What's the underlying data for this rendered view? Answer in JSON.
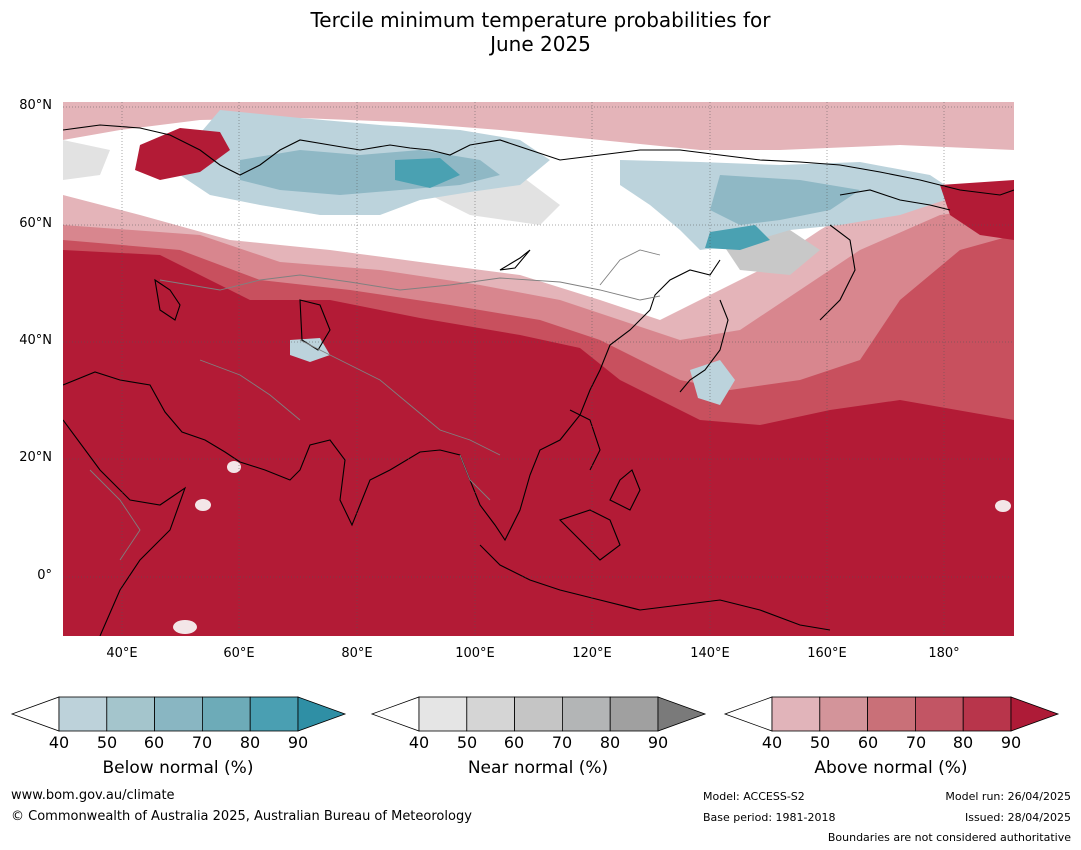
{
  "title_line1": "Tercile minimum temperature probabilities for",
  "title_line2": "June 2025",
  "map": {
    "lat_labels": [
      "80°N",
      "60°N",
      "40°N",
      "20°N",
      "0°"
    ],
    "lon_labels": [
      "40°E",
      "60°E",
      "80°E",
      "100°E",
      "120°E",
      "140°E",
      "160°E",
      "180°"
    ],
    "colors": {
      "above_extreme": "#b31b36",
      "above_high": "#c8505e",
      "above_mid": "#d8868e",
      "above_low": "#e4b4b9",
      "near": "#e2e2e2",
      "near_dark": "#c8c8c8",
      "below_low": "#bcd3dc",
      "below_mid": "#8fb8c5",
      "below_high": "#4aa1b2",
      "coast": "#000000",
      "border": "#808080"
    }
  },
  "colorbars": [
    {
      "name": "below",
      "title": "Below normal (%)",
      "ticks": [
        "40",
        "50",
        "60",
        "70",
        "80",
        "90"
      ],
      "colors": [
        "#ffffff",
        "#bdd2da",
        "#a4c5cc",
        "#89b6c2",
        "#6dabb8",
        "#4a9fb2",
        "#2f8fa5"
      ]
    },
    {
      "name": "near",
      "title": "Near normal (%)",
      "ticks": [
        "40",
        "50",
        "60",
        "70",
        "80",
        "90"
      ],
      "colors": [
        "#ffffff",
        "#e5e5e5",
        "#d5d5d5",
        "#c5c5c5",
        "#b3b5b6",
        "#a0a0a0",
        "#7a7a7a"
      ]
    },
    {
      "name": "above",
      "title": "Above normal (%)",
      "ticks": [
        "40",
        "50",
        "60",
        "70",
        "80",
        "90"
      ],
      "colors": [
        "#ffffff",
        "#e1b4ba",
        "#d3949a",
        "#c97078",
        "#c25564",
        "#b8354b",
        "#ae1b37"
      ]
    }
  ],
  "footer": {
    "website": "www.bom.gov.au/climate",
    "copyright": "© Commonwealth of Australia 2025, Australian Bureau of Meteorology",
    "model": "Model: ACCESS-S2",
    "base_period": "Base period: 1981-2018",
    "model_run": "Model run: 26/04/2025",
    "issued": "Issued: 28/04/2025",
    "disclaimer": "Boundaries are not considered authoritative"
  }
}
